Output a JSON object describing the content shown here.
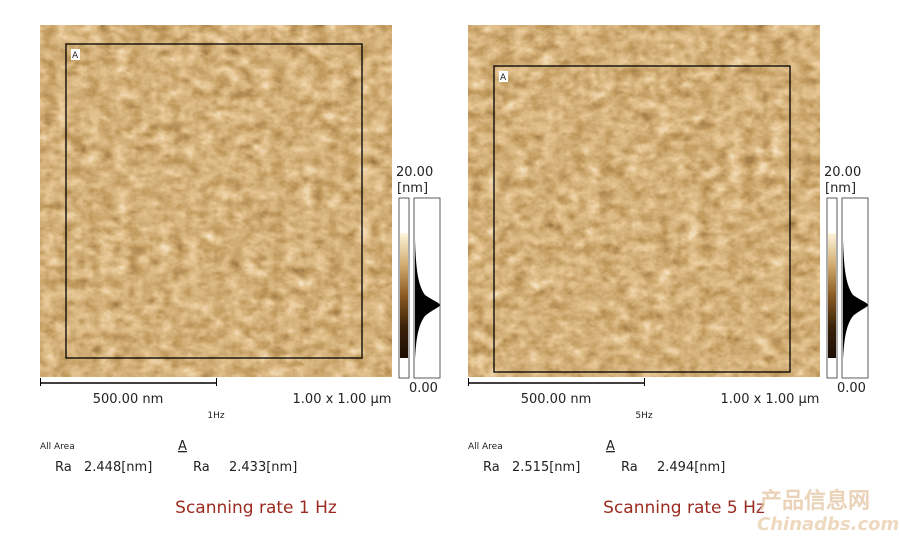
{
  "panels": [
    {
      "frame_label": "A",
      "scale_max": "20.00",
      "scale_unit": "[nm]",
      "scale_min": "0.00",
      "scale_bar": "500.00 nm",
      "rate": "1Hz",
      "size": "1.00 x 1.00 µm",
      "area_all": "All Area",
      "area_a": "A",
      "ra_all_label": "Ra",
      "ra_all": "2.448[nm]",
      "ra_a_label": "Ra",
      "ra_a": "2.433[nm]",
      "caption": "Scanning rate 1 Hz"
    },
    {
      "frame_label": "A",
      "scale_max": "20.00",
      "scale_unit": "[nm]",
      "scale_min": "0.00",
      "scale_bar": "500.00 nm",
      "rate": "5Hz",
      "size": "1.00 x 1.00 µm",
      "area_all": "All Area",
      "area_a": "A",
      "ra_all_label": "Ra",
      "ra_all": "2.515[nm]",
      "ra_a_label": "Ra",
      "ra_a": "2.494[nm]",
      "caption": "Scanning rate 5 Hz"
    }
  ],
  "watermark": {
    "line1": "产品信息网",
    "line2": "Chinadbs.com"
  }
}
